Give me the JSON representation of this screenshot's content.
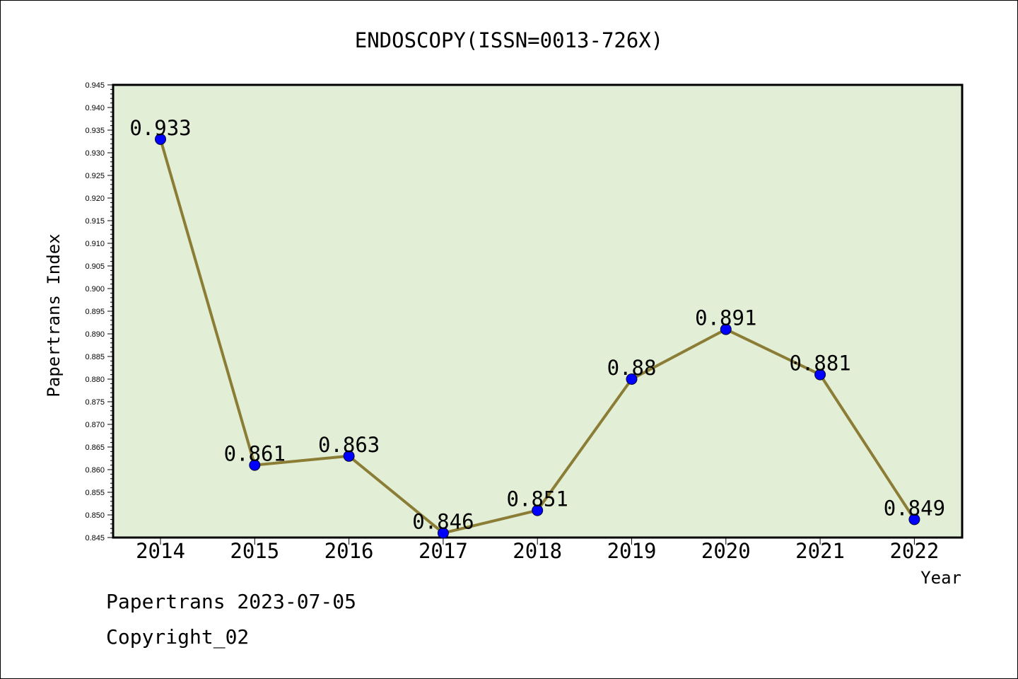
{
  "chart_data": {
    "type": "line",
    "title": "ENDOSCOPY(ISSN=0013-726X)",
    "xlabel": "Year",
    "ylabel": "Papertrans Index",
    "categories": [
      "2014",
      "2015",
      "2016",
      "2017",
      "2018",
      "2019",
      "2020",
      "2021",
      "2022"
    ],
    "values": [
      0.933,
      0.861,
      0.863,
      0.846,
      0.851,
      0.88,
      0.891,
      0.881,
      0.849
    ],
    "data_labels": [
      "0.933",
      "0.861",
      "0.863",
      "0.846",
      "0.851",
      "0.88",
      "0.891",
      "0.881",
      "0.849"
    ],
    "ylim": [
      0.845,
      0.945
    ],
    "yticks": [
      "0.845",
      "0.850",
      "0.855",
      "0.860",
      "0.865",
      "0.870",
      "0.875",
      "0.880",
      "0.885",
      "0.890",
      "0.895",
      "0.900",
      "0.905",
      "0.910",
      "0.915",
      "0.920",
      "0.925",
      "0.930",
      "0.935",
      "0.940",
      "0.945"
    ],
    "grid": false,
    "colors": {
      "plot_background": "#e2efd6",
      "line": "#8b7d35",
      "marker": "#0000ff"
    }
  },
  "footer": {
    "date_text": "Papertrans 2023-07-05",
    "copyright_text": "Copyright_02"
  }
}
